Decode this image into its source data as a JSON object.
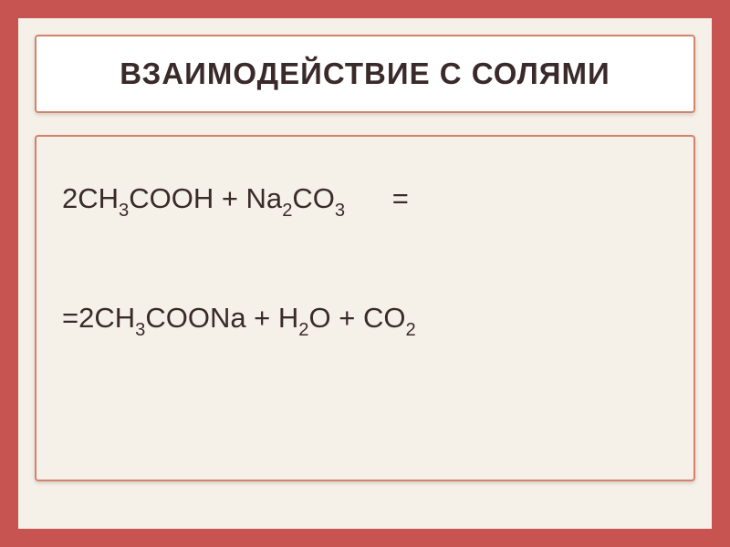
{
  "slide": {
    "title": "ВЗАИМОДЕЙСТВИЕ С СОЛЯМИ",
    "frame_border_color": "#c75450",
    "frame_border_width": 20,
    "background_color": "#f5f0e8",
    "title_box": {
      "background_color": "#ffffff",
      "border_color": "#d4826c",
      "text_color": "#3a2a2a",
      "font_size": 33,
      "font_weight": "bold"
    },
    "content_box": {
      "background_color": "#f5f0e8",
      "border_color": "#d4826c",
      "text_color": "#3a2a2a",
      "font_size": 31
    },
    "equations": {
      "line1": {
        "parts": [
          {
            "text": "2CH",
            "sub": ""
          },
          {
            "text": "",
            "sub": "3"
          },
          {
            "text": "COOH + Na",
            "sub": ""
          },
          {
            "text": "",
            "sub": "2"
          },
          {
            "text": "CO",
            "sub": ""
          },
          {
            "text": "",
            "sub": "3"
          },
          {
            "text": "      =",
            "sub": ""
          }
        ],
        "plain": "2CH3COOH + Na2CO3      ="
      },
      "line2": {
        "parts": [
          {
            "text": "=2CH",
            "sub": ""
          },
          {
            "text": "",
            "sub": "3"
          },
          {
            "text": "COONa + H",
            "sub": ""
          },
          {
            "text": "",
            "sub": "2"
          },
          {
            "text": "O + CO",
            "sub": ""
          },
          {
            "text": "",
            "sub": "2"
          }
        ],
        "plain": "=2CH3COONa + H2O + CO2"
      }
    }
  }
}
